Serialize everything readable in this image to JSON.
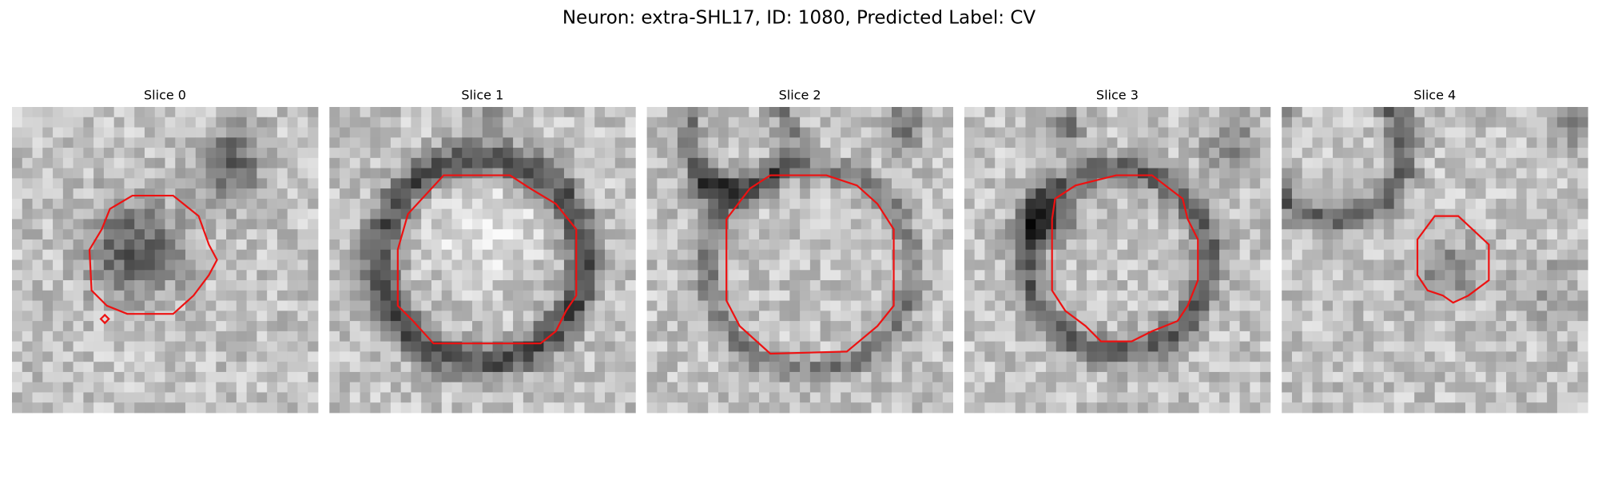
{
  "title": "Neuron: extra-SHL17, ID: 1080, Predicted Label: CV",
  "panels": [
    {
      "label": "Slice 0"
    },
    {
      "label": "Slice 1"
    },
    {
      "label": "Slice 2"
    },
    {
      "label": "Slice 3"
    },
    {
      "label": "Slice 4"
    }
  ]
}
